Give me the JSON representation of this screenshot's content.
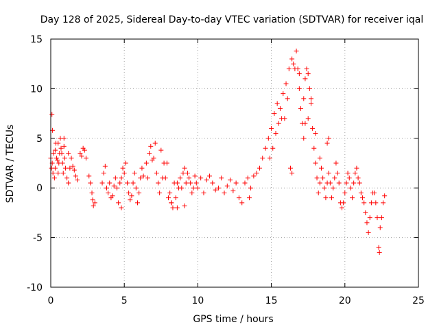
{
  "chart_data": {
    "type": "scatter",
    "title": "Day 128 of 2025, Sidereal Day-to-day VTEC variation (SDTVAR) for receiver iqal",
    "xlabel": "GPS time / hours",
    "ylabel": "SDTVAR / TECUs",
    "xlim": [
      0,
      25
    ],
    "ylim": [
      -10,
      15
    ],
    "xticks": [
      0,
      5,
      10,
      15,
      20,
      25
    ],
    "yticks": [
      -10,
      -5,
      0,
      5,
      10,
      15
    ],
    "xtick_labels": [
      "0",
      "5",
      "10",
      "15",
      "20",
      "25"
    ],
    "ytick_labels": [
      "-10",
      "-5",
      "0",
      "5",
      "10",
      "15"
    ],
    "grid": true,
    "marker": "plus",
    "color": "#ff0000",
    "series": [
      {
        "name": "SDTVAR",
        "points": [
          [
            0.0,
            3.0
          ],
          [
            0.05,
            2.0
          ],
          [
            0.08,
            7.4
          ],
          [
            0.1,
            2.5
          ],
          [
            0.12,
            5.8
          ],
          [
            0.15,
            1.5
          ],
          [
            0.2,
            3.5
          ],
          [
            0.25,
            1.0
          ],
          [
            0.3,
            2.0
          ],
          [
            0.35,
            4.5
          ],
          [
            0.4,
            3.0
          ],
          [
            0.45,
            2.8
          ],
          [
            0.5,
            1.5
          ],
          [
            0.55,
            2.5
          ],
          [
            0.6,
            3.5
          ],
          [
            0.65,
            5.0
          ],
          [
            0.7,
            4.0
          ],
          [
            0.75,
            3.5
          ],
          [
            0.8,
            2.5
          ],
          [
            0.85,
            1.5
          ],
          [
            0.9,
            4.2
          ],
          [
            0.95,
            3.0
          ],
          [
            1.0,
            2.0
          ],
          [
            1.1,
            1.0
          ],
          [
            1.2,
            0.5
          ],
          [
            1.3,
            2.0
          ],
          [
            1.4,
            3.0
          ],
          [
            1.5,
            2.2
          ],
          [
            1.6,
            1.8
          ],
          [
            1.7,
            1.2
          ],
          [
            1.8,
            0.8
          ],
          [
            2.0,
            3.5
          ],
          [
            2.1,
            3.2
          ],
          [
            2.2,
            4.0
          ],
          [
            2.3,
            3.8
          ],
          [
            2.4,
            3.0
          ],
          [
            2.6,
            1.2
          ],
          [
            2.7,
            0.5
          ],
          [
            2.8,
            -0.5
          ],
          [
            2.85,
            -1.2
          ],
          [
            2.9,
            -1.8
          ],
          [
            3.5,
            0.5
          ],
          [
            3.6,
            1.5
          ],
          [
            3.7,
            2.2
          ],
          [
            3.8,
            0.0
          ],
          [
            3.9,
            -0.5
          ],
          [
            4.0,
            0.5
          ],
          [
            4.1,
            -1.0
          ],
          [
            4.2,
            -0.8
          ],
          [
            4.3,
            0.2
          ],
          [
            4.4,
            1.0
          ],
          [
            4.5,
            0.0
          ],
          [
            4.6,
            -1.5
          ],
          [
            4.7,
            0.5
          ],
          [
            4.8,
            1.0
          ],
          [
            4.9,
            2.0
          ],
          [
            5.0,
            1.5
          ],
          [
            5.1,
            2.5
          ],
          [
            5.2,
            0.5
          ],
          [
            5.3,
            -0.5
          ],
          [
            5.4,
            -1.2
          ],
          [
            5.5,
            -0.8
          ],
          [
            5.6,
            0.5
          ],
          [
            5.7,
            1.5
          ],
          [
            5.8,
            0.0
          ],
          [
            5.9,
            -1.5
          ],
          [
            6.0,
            -0.5
          ],
          [
            6.1,
            1.0
          ],
          [
            6.2,
            2.0
          ],
          [
            6.3,
            1.2
          ],
          [
            6.5,
            2.5
          ],
          [
            6.6,
            1.0
          ],
          [
            6.7,
            3.5
          ],
          [
            6.8,
            4.2
          ],
          [
            6.9,
            2.8
          ],
          [
            7.0,
            3.0
          ],
          [
            7.1,
            4.5
          ],
          [
            7.2,
            1.5
          ],
          [
            7.3,
            0.5
          ],
          [
            7.4,
            -0.5
          ],
          [
            7.5,
            3.8
          ],
          [
            7.6,
            1.0
          ],
          [
            7.7,
            2.5
          ],
          [
            7.8,
            1.0
          ],
          [
            7.9,
            2.5
          ],
          [
            8.0,
            -1.0
          ],
          [
            8.1,
            -0.5
          ],
          [
            8.2,
            -1.5
          ],
          [
            8.3,
            -2.0
          ],
          [
            8.4,
            0.5
          ],
          [
            8.5,
            -1.0
          ],
          [
            8.6,
            0.5
          ],
          [
            8.7,
            0.0
          ],
          [
            8.8,
            1.0
          ],
          [
            8.9,
            0.0
          ],
          [
            9.0,
            1.5
          ],
          [
            9.1,
            2.0
          ],
          [
            9.2,
            0.5
          ],
          [
            9.3,
            1.5
          ],
          [
            9.4,
            1.0
          ],
          [
            9.5,
            0.5
          ],
          [
            9.6,
            -0.5
          ],
          [
            9.7,
            0.0
          ],
          [
            9.8,
            1.2
          ],
          [
            9.9,
            0.5
          ],
          [
            10.0,
            0.0
          ],
          [
            10.2,
            1.0
          ],
          [
            10.4,
            -0.5
          ],
          [
            10.6,
            0.8
          ],
          [
            10.8,
            1.2
          ],
          [
            11.0,
            0.5
          ],
          [
            11.2,
            -0.2
          ],
          [
            11.4,
            0.0
          ],
          [
            11.6,
            1.0
          ],
          [
            11.8,
            -0.5
          ],
          [
            12.0,
            0.2
          ],
          [
            12.2,
            0.8
          ],
          [
            12.4,
            -0.3
          ],
          [
            12.6,
            0.5
          ],
          [
            12.8,
            -1.0
          ],
          [
            13.0,
            -1.5
          ],
          [
            13.2,
            0.5
          ],
          [
            13.4,
            1.0
          ],
          [
            13.6,
            0.0
          ],
          [
            13.8,
            1.2
          ],
          [
            14.0,
            1.5
          ],
          [
            14.2,
            2.0
          ],
          [
            14.4,
            3.0
          ],
          [
            14.6,
            4.0
          ],
          [
            14.8,
            5.0
          ],
          [
            15.0,
            6.0
          ],
          [
            15.2,
            7.5
          ],
          [
            15.4,
            8.5
          ],
          [
            15.6,
            8.0
          ],
          [
            15.8,
            9.5
          ],
          [
            16.0,
            10.5
          ],
          [
            16.2,
            12.0
          ],
          [
            16.4,
            13.0
          ],
          [
            16.5,
            12.5
          ],
          [
            16.6,
            12.0
          ],
          [
            16.7,
            13.8
          ],
          [
            16.8,
            12.0
          ],
          [
            16.9,
            10.0
          ],
          [
            17.0,
            8.0
          ],
          [
            17.1,
            6.5
          ],
          [
            17.2,
            9.0
          ],
          [
            17.3,
            11.0
          ],
          [
            17.4,
            12.0
          ],
          [
            17.5,
            11.5
          ],
          [
            17.6,
            10.0
          ],
          [
            17.7,
            8.5
          ],
          [
            17.8,
            6.0
          ],
          [
            17.9,
            4.0
          ],
          [
            18.0,
            2.5
          ],
          [
            18.1,
            1.0
          ],
          [
            18.2,
            -0.5
          ],
          [
            18.3,
            0.5
          ],
          [
            18.4,
            2.0
          ],
          [
            18.5,
            1.0
          ],
          [
            18.6,
            0.0
          ],
          [
            18.7,
            -1.0
          ],
          [
            18.8,
            0.5
          ],
          [
            18.9,
            1.5
          ],
          [
            19.0,
            0.5
          ],
          [
            19.1,
            -1.0
          ],
          [
            19.2,
            0.0
          ],
          [
            19.3,
            1.0
          ],
          [
            19.4,
            2.5
          ],
          [
            19.5,
            1.5
          ],
          [
            19.6,
            0.5
          ],
          [
            19.7,
            -1.5
          ],
          [
            19.8,
            -2.0
          ],
          [
            19.9,
            -1.5
          ],
          [
            20.0,
            -0.5
          ],
          [
            20.1,
            0.5
          ],
          [
            20.2,
            1.5
          ],
          [
            20.3,
            1.0
          ],
          [
            20.4,
            0.0
          ],
          [
            20.5,
            -1.0
          ],
          [
            20.6,
            0.5
          ],
          [
            20.7,
            1.5
          ],
          [
            20.8,
            2.0
          ],
          [
            20.9,
            1.0
          ],
          [
            21.0,
            0.5
          ],
          [
            21.1,
            -0.5
          ],
          [
            21.2,
            -1.0
          ],
          [
            21.3,
            -1.5
          ],
          [
            21.4,
            -2.5
          ],
          [
            21.5,
            -3.5
          ],
          [
            21.6,
            -4.5
          ],
          [
            21.7,
            -3.0
          ],
          [
            21.8,
            -1.5
          ],
          [
            21.9,
            -0.5
          ],
          [
            22.0,
            -0.5
          ],
          [
            22.1,
            -1.5
          ],
          [
            22.2,
            -3.0
          ],
          [
            22.3,
            -6.0
          ],
          [
            22.35,
            -6.5
          ],
          [
            22.4,
            -4.0
          ],
          [
            22.5,
            -3.0
          ],
          [
            22.6,
            -1.5
          ],
          [
            22.7,
            -0.8
          ],
          [
            16.3,
            2.0
          ],
          [
            16.4,
            1.5
          ],
          [
            17.2,
            5.0
          ],
          [
            17.3,
            6.5
          ],
          [
            18.9,
            5.0
          ],
          [
            18.8,
            4.5
          ],
          [
            15.9,
            7.0
          ],
          [
            16.1,
            9.0
          ],
          [
            14.9,
            3.0
          ],
          [
            15.1,
            4.0
          ],
          [
            15.3,
            5.5
          ],
          [
            15.5,
            6.5
          ],
          [
            15.7,
            7.0
          ],
          [
            16.9,
            11.5
          ],
          [
            17.5,
            7.0
          ],
          [
            17.7,
            9.0
          ],
          [
            18.0,
            5.5
          ],
          [
            18.3,
            3.0
          ],
          [
            9.1,
            -1.8
          ],
          [
            8.6,
            -2.0
          ],
          [
            8.2,
            -1.5
          ],
          [
            4.8,
            -2.0
          ],
          [
            3.0,
            -1.5
          ],
          [
            1.2,
            3.5
          ],
          [
            0.5,
            4.5
          ],
          [
            0.3,
            3.8
          ],
          [
            0.9,
            5.0
          ],
          [
            13.5,
            -1.0
          ]
        ]
      }
    ]
  }
}
